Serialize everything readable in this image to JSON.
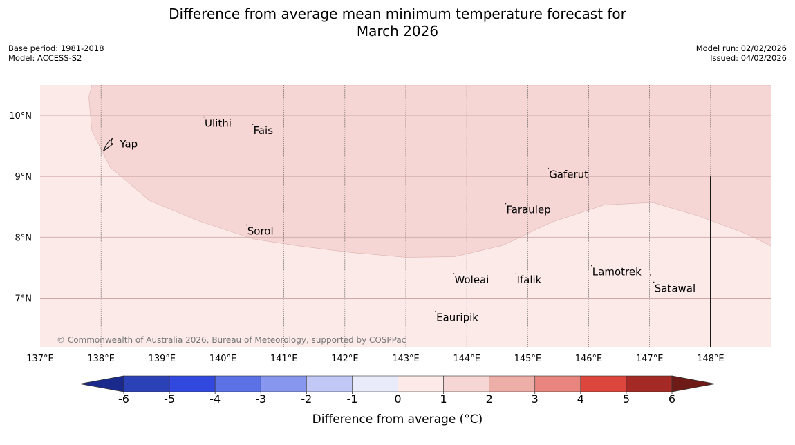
{
  "title_line1": "Difference from average mean minimum temperature forecast for",
  "title_line2": "March 2026",
  "base_period": "Base period: 1981-2018",
  "model": "Model: ACCESS-S2",
  "model_run": "Model run: 02/02/2026",
  "issued": "Issued: 04/02/2026",
  "copyright": "© Commonwealth of Australia 2026, Bureau of Meteorology, supported by COSPPac",
  "lat_labels": [
    {
      "lat": 10,
      "label": "10°N"
    },
    {
      "lat": 9,
      "label": "9°N"
    },
    {
      "lat": 8,
      "label": "8°N"
    },
    {
      "lat": 7,
      "label": "7°N"
    }
  ],
  "lon_labels": [
    {
      "lon": 137,
      "label": "137°E"
    },
    {
      "lon": 138,
      "label": "138°E"
    },
    {
      "lon": 139,
      "label": "139°E"
    },
    {
      "lon": 140,
      "label": "140°E"
    },
    {
      "lon": 141,
      "label": "141°E"
    },
    {
      "lon": 142,
      "label": "142°E"
    },
    {
      "lon": 143,
      "label": "143°E"
    },
    {
      "lon": 144,
      "label": "144°E"
    },
    {
      "lon": 145,
      "label": "145°E"
    },
    {
      "lon": 146,
      "label": "146°E"
    },
    {
      "lon": 147,
      "label": "147°E"
    },
    {
      "lon": 148,
      "label": "148°E"
    }
  ],
  "places": [
    {
      "name": "Yap",
      "lon": 138.15,
      "lat": 9.53
    },
    {
      "name": "Ulithi",
      "lon": 139.7,
      "lat": 9.87
    },
    {
      "name": "Fais",
      "lon": 140.5,
      "lat": 9.75
    },
    {
      "name": "Gaferut",
      "lon": 145.35,
      "lat": 9.03
    },
    {
      "name": "Faraulep",
      "lon": 144.65,
      "lat": 8.45
    },
    {
      "name": "Sorol",
      "lon": 140.4,
      "lat": 8.1
    },
    {
      "name": "Woleai",
      "lon": 143.8,
      "lat": 7.3
    },
    {
      "name": "Ifalik",
      "lon": 144.82,
      "lat": 7.3
    },
    {
      "name": "Lamotrek",
      "lon": 146.06,
      "lat": 7.43
    },
    {
      "name": "Satawal",
      "lon": 147.08,
      "lat": 7.16
    },
    {
      "name": "Eauripik",
      "lon": 143.5,
      "lat": 6.68
    }
  ],
  "anomaly_classes": [
    {
      "range": "-6 or below",
      "color": "#1a2a8c"
    },
    {
      "range": "-6 to -5",
      "color": "#2b41b8"
    },
    {
      "range": "-5 to -4",
      "color": "#3249e0"
    },
    {
      "range": "-4 to -3",
      "color": "#5b72e6"
    },
    {
      "range": "-3 to -2",
      "color": "#8796ee"
    },
    {
      "range": "-2 to -1",
      "color": "#c1c8f6"
    },
    {
      "range": "-1 to 0",
      "color": "#e9ebfb"
    },
    {
      "range": "0 to 1",
      "color": "#fbeae8"
    },
    {
      "range": "1 to 2",
      "color": "#f5d6d4"
    },
    {
      "range": "2 to 3",
      "color": "#eeaea8"
    },
    {
      "range": "3 to 4",
      "color": "#e7857e"
    },
    {
      "range": "4 to 5",
      "color": "#dc463c"
    },
    {
      "range": "5 to 6",
      "color": "#a52a25"
    },
    {
      "range": "6 or above",
      "color": "#6e1a16"
    }
  ],
  "colorbar_ticks": [
    "-6",
    "-5",
    "-4",
    "-3",
    "-2",
    "-1",
    "0",
    "1",
    "2",
    "3",
    "4",
    "5",
    "6"
  ],
  "colorbar_label": "Difference from average (°C)",
  "map_extent": {
    "lon_min": 137,
    "lon_max": 149,
    "lat_min": 6.2,
    "lat_max": 10.5
  },
  "boundary_1_2": [
    [
      137.85,
      10.5
    ],
    [
      137.8,
      10.3
    ],
    [
      137.85,
      9.75
    ],
    [
      138.15,
      9.15
    ],
    [
      138.8,
      8.6
    ],
    [
      139.6,
      8.27
    ],
    [
      140.5,
      7.97
    ],
    [
      141.3,
      7.85
    ],
    [
      142.1,
      7.75
    ],
    [
      143.0,
      7.67
    ],
    [
      143.8,
      7.68
    ],
    [
      144.6,
      7.87
    ],
    [
      145.4,
      8.25
    ],
    [
      146.25,
      8.53
    ],
    [
      147.05,
      8.57
    ],
    [
      147.8,
      8.35
    ],
    [
      148.6,
      8.05
    ],
    [
      149.0,
      7.85
    ]
  ],
  "boundary_line": [
    [
      148.0,
      9.0
    ],
    [
      148.0,
      6.2
    ]
  ]
}
